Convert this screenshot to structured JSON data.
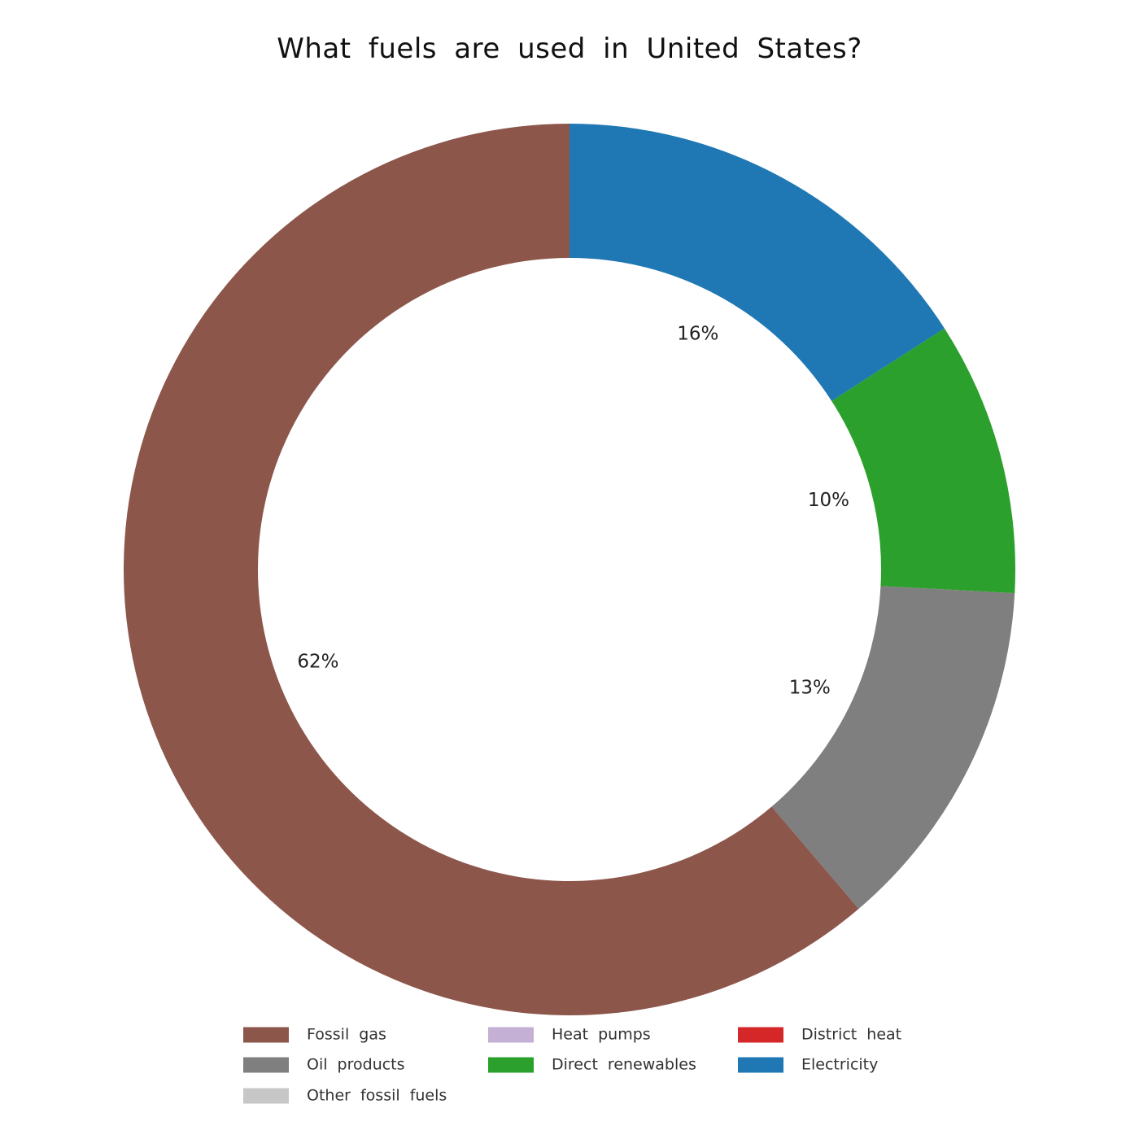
{
  "chart_data": {
    "type": "pie",
    "donut": true,
    "title": "What fuels are used in United States?",
    "start_angle_deg": 90,
    "direction": "clockwise",
    "slices": [
      {
        "name": "Electricity",
        "value": 16,
        "label": "16%",
        "color": "#1f77b4"
      },
      {
        "name": "Direct renewables",
        "value": 10,
        "label": "10%",
        "color": "#2ca02c"
      },
      {
        "name": "Oil products",
        "value": 13,
        "label": "13%",
        "color": "#7f7f7f"
      },
      {
        "name": "Fossil gas",
        "value": 61.6,
        "label": "62%",
        "color": "#8c564b"
      }
    ],
    "legend": {
      "placement": "bottom",
      "columns": 3,
      "entries": [
        {
          "name": "Fossil gas",
          "color": "#8c564b"
        },
        {
          "name": "Oil products",
          "color": "#7f7f7f"
        },
        {
          "name": "Other fossil fuels",
          "color": "#c7c7c7"
        },
        {
          "name": "Heat pumps",
          "color": "#c5b0d5"
        },
        {
          "name": "Direct renewables",
          "color": "#2ca02c"
        },
        {
          "name": "District heat",
          "color": "#d62728"
        },
        {
          "name": "Electricity",
          "color": "#1f77b4"
        }
      ]
    }
  }
}
